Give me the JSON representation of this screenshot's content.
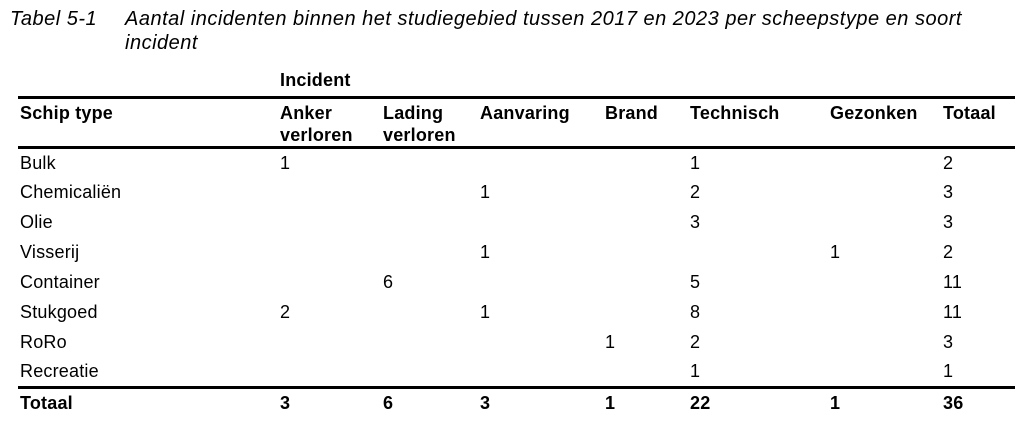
{
  "title": {
    "label": "Tabel 5-1",
    "caption": "Aantal incidenten binnen het studiegebied tussen 2017 en 2023 per scheepstype en soort incident"
  },
  "table": {
    "group_header": "Incident",
    "columns": [
      "Schip type",
      "Anker verloren",
      "Lading verloren",
      "Aanvaring",
      "Brand",
      "Technisch",
      "Gezonken",
      "Totaal"
    ],
    "rows": [
      {
        "label": "Bulk",
        "values": [
          "1",
          "",
          "",
          "",
          "1",
          "",
          "2"
        ]
      },
      {
        "label": "Chemicaliën",
        "values": [
          "",
          "",
          "1",
          "",
          "2",
          "",
          "3"
        ]
      },
      {
        "label": "Olie",
        "values": [
          "",
          "",
          "",
          "",
          "3",
          "",
          "3"
        ]
      },
      {
        "label": "Visserij",
        "values": [
          "",
          "",
          "1",
          "",
          "",
          "1",
          "2"
        ]
      },
      {
        "label": "Container",
        "values": [
          "",
          "6",
          "",
          "",
          "5",
          "",
          "11"
        ]
      },
      {
        "label": "Stukgoed",
        "values": [
          "2",
          "",
          "1",
          "",
          "8",
          "",
          "11"
        ]
      },
      {
        "label": "RoRo",
        "values": [
          "",
          "",
          "",
          "1",
          "2",
          "",
          "3"
        ]
      },
      {
        "label": "Recreatie",
        "values": [
          "",
          "",
          "",
          "",
          "1",
          "",
          "1"
        ]
      }
    ],
    "total": {
      "label": "Totaal",
      "values": [
        "3",
        "6",
        "3",
        "1",
        "22",
        "1",
        "36"
      ]
    }
  },
  "colors": {
    "text": "#000000",
    "rule": "#000000",
    "background": "#ffffff"
  }
}
